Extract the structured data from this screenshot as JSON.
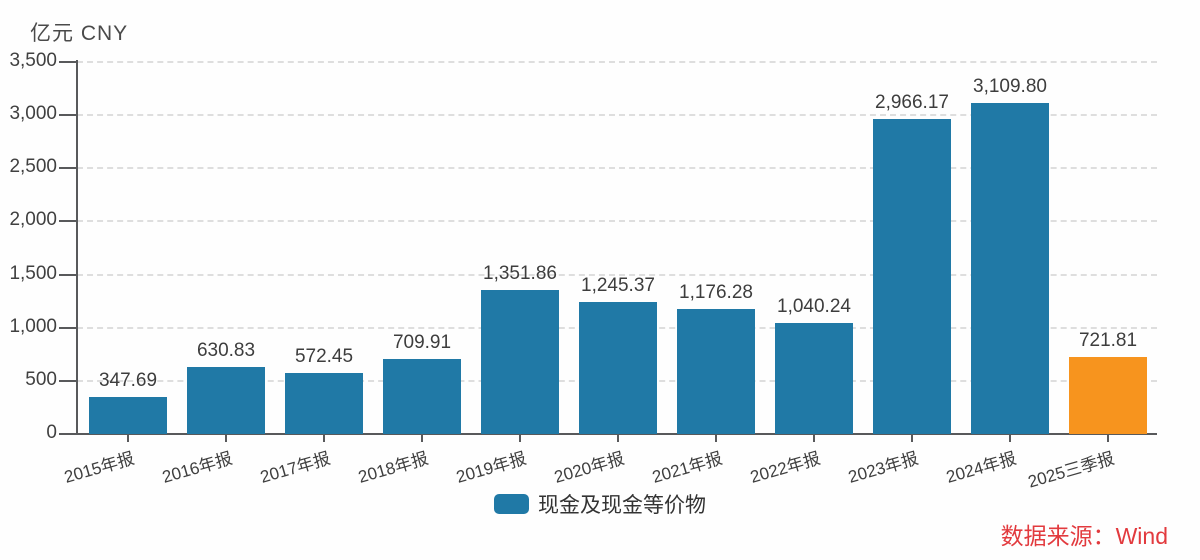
{
  "header": {
    "unit_label": "亿元  CNY"
  },
  "chart_data": {
    "type": "bar",
    "title": "",
    "ylabel": "亿元 CNY",
    "xlabel": "",
    "categories": [
      "2015年报",
      "2016年报",
      "2017年报",
      "2018年报",
      "2019年报",
      "2020年报",
      "2021年报",
      "2022年报",
      "2023年报",
      "2024年报",
      "2025三季报"
    ],
    "values": [
      347.69,
      630.83,
      572.45,
      709.91,
      1351.86,
      1245.37,
      1176.28,
      1040.24,
      2966.17,
      3109.8,
      721.81
    ],
    "value_labels": [
      "347.69",
      "630.83",
      "572.45",
      "709.91",
      "1,351.86",
      "1,245.37",
      "1,176.28",
      "1,040.24",
      "2,966.17",
      "3,109.80",
      "721.81"
    ],
    "series_name": "现金及现金等价物",
    "ylim": [
      0,
      3500
    ],
    "y_ticks": [
      0,
      500,
      1000,
      1500,
      2000,
      2500,
      3000,
      3500
    ],
    "y_tick_labels": [
      "0",
      "500",
      "1,000",
      "1,500",
      "2,000",
      "2,500",
      "3,000",
      "3,500"
    ],
    "bar_colors": [
      "#2079a6",
      "#2079a6",
      "#2079a6",
      "#2079a6",
      "#2079a6",
      "#2079a6",
      "#2079a6",
      "#2079a6",
      "#2079a6",
      "#2079a6",
      "#f7941e"
    ],
    "grid": "horizontal-dashed",
    "legend_position": "bottom-center"
  },
  "colors": {
    "bar_default": "#2079a6",
    "bar_highlight": "#f7941e",
    "axis": "#58595b",
    "gridline": "#dedede",
    "source_text": "#e23a3e"
  },
  "legend": {
    "label": "现金及现金等价物"
  },
  "footer": {
    "source_label": "数据来源：Wind"
  }
}
